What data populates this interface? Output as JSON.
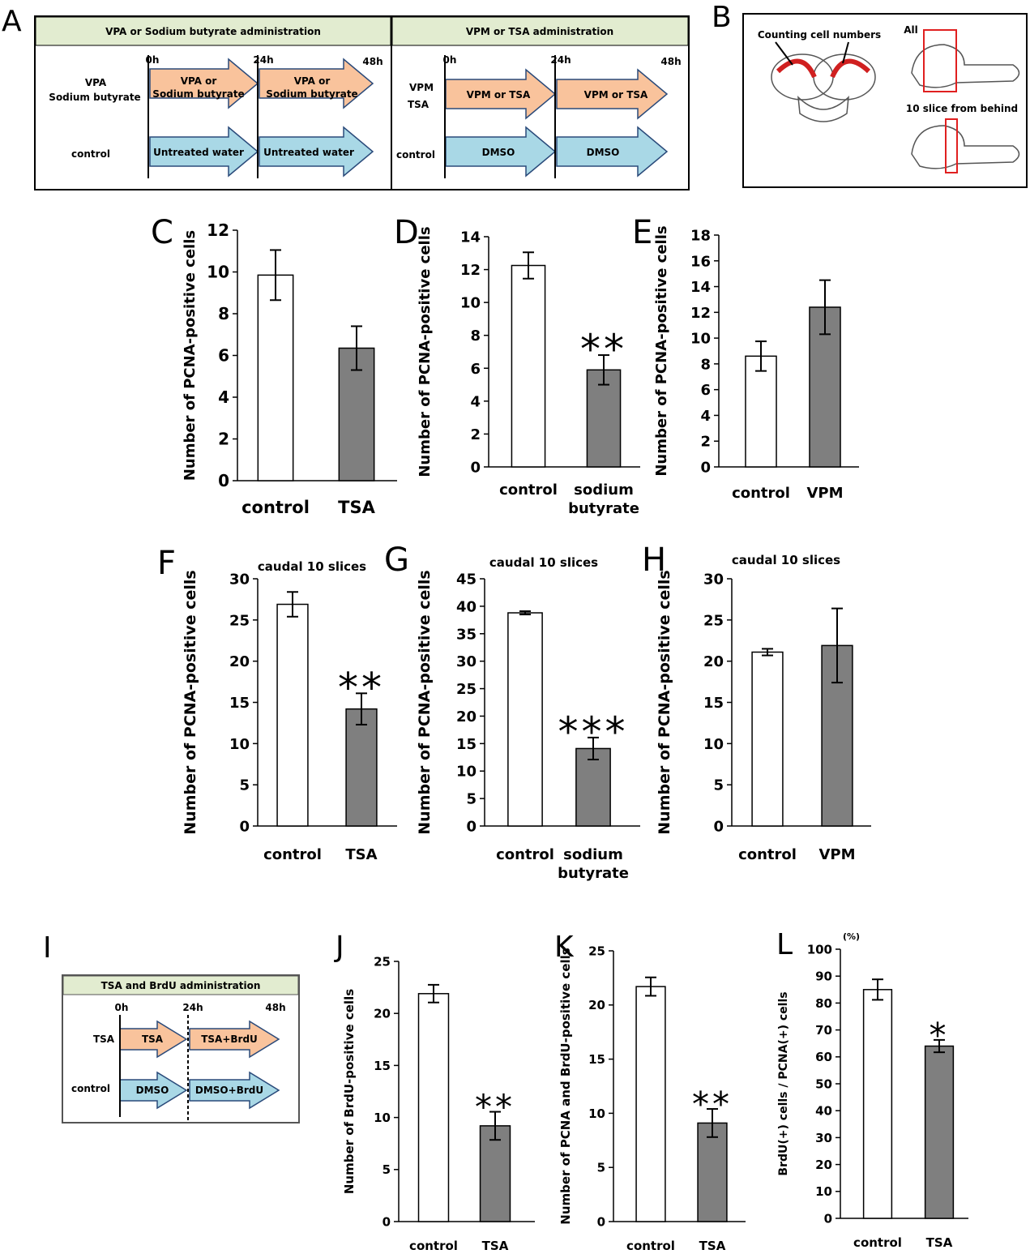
{
  "panel_a": {
    "letter": "A",
    "headers": [
      "VPA or Sodium butyrate administration",
      "VPM or TSA administration"
    ],
    "left_times": [
      "0h",
      "24h",
      "48h"
    ],
    "left_rows": [
      [
        "VPA",
        "Sodium butyrate"
      ],
      [
        "control"
      ]
    ],
    "left_arrows": [
      [
        "VPA or",
        "Sodium butyrate"
      ],
      [
        "VPA or",
        "Sodium butyrate"
      ],
      [
        "Untreated water"
      ],
      [
        "Untreated water"
      ]
    ],
    "right_times": [
      "0h",
      "24h",
      "48h"
    ],
    "right_rows": [
      [
        "VPM",
        "TSA"
      ],
      [
        "control"
      ]
    ],
    "right_arrows": [
      [
        "VPM or TSA"
      ],
      [
        "VPM or TSA"
      ],
      [
        "DMSO"
      ],
      [
        "DMSO"
      ]
    ]
  },
  "panel_b": {
    "letter": "B",
    "labels": [
      "Counting cell numbers",
      "All",
      "10 slice from behind"
    ]
  },
  "panel_i": {
    "letter": "I",
    "header": "TSA and BrdU administration",
    "times": [
      "0h",
      "24h",
      "48h"
    ],
    "rows": [
      "TSA",
      "control"
    ],
    "arrows": [
      "TSA",
      "TSA+BrdU",
      "DMSO",
      "DMSO+BrdU"
    ]
  },
  "chart_data": [
    {
      "type": "bar",
      "panel": "C",
      "ylabel": "Number of PCNA-positive cells",
      "categories": [
        "control",
        "TSA"
      ],
      "values": [
        9.85,
        6.35
      ],
      "errors": [
        1.2,
        1.05
      ],
      "colors": [
        "#ffffff",
        "#7f7f7f"
      ],
      "ylim": [
        0,
        12
      ],
      "yticks": [
        0,
        2,
        4,
        6,
        8,
        10,
        12
      ]
    },
    {
      "type": "bar",
      "panel": "D",
      "ylabel": "Number of PCNA-positive cells",
      "categories": [
        "control",
        "sodium butyrate"
      ],
      "values": [
        12.25,
        5.9
      ],
      "errors": [
        0.8,
        0.9
      ],
      "colors": [
        "#ffffff",
        "#7f7f7f"
      ],
      "ylim": [
        0,
        14
      ],
      "yticks": [
        0,
        2,
        4,
        6,
        8,
        10,
        12,
        14
      ],
      "annotation": "**"
    },
    {
      "type": "bar",
      "panel": "E",
      "ylabel": "Number of PCNA-positive cells",
      "categories": [
        "control",
        "VPM"
      ],
      "values": [
        8.6,
        12.4
      ],
      "errors": [
        1.15,
        2.1
      ],
      "colors": [
        "#ffffff",
        "#7f7f7f"
      ],
      "ylim": [
        0,
        18
      ],
      "yticks": [
        0,
        2,
        4,
        6,
        8,
        10,
        12,
        14,
        16,
        18
      ]
    },
    {
      "type": "bar",
      "panel": "F",
      "title": "caudal 10 slices",
      "ylabel": "Number of PCNA-positive cells",
      "categories": [
        "control",
        "TSA"
      ],
      "values": [
        26.9,
        14.2
      ],
      "errors": [
        1.5,
        1.9
      ],
      "colors": [
        "#ffffff",
        "#7f7f7f"
      ],
      "ylim": [
        0,
        30
      ],
      "yticks": [
        0,
        5,
        10,
        15,
        20,
        25,
        30
      ],
      "annotation": "**"
    },
    {
      "type": "bar",
      "panel": "G",
      "title": "caudal 10 slices",
      "ylabel": "Number of PCNA-positive cells",
      "categories": [
        "control",
        "sodium butyrate"
      ],
      "values": [
        38.8,
        14.1
      ],
      "errors": [
        0.3,
        2.0
      ],
      "colors": [
        "#ffffff",
        "#7f7f7f"
      ],
      "ylim": [
        0,
        45
      ],
      "yticks": [
        0,
        5,
        10,
        15,
        20,
        25,
        30,
        35,
        40,
        45
      ],
      "annotation": "***"
    },
    {
      "type": "bar",
      "panel": "H",
      "title": "caudal 10 slices",
      "ylabel": "Number of PCNA-positive cells",
      "categories": [
        "control",
        "VPM"
      ],
      "values": [
        21.1,
        21.9
      ],
      "errors": [
        0.4,
        4.5
      ],
      "colors": [
        "#ffffff",
        "#7f7f7f"
      ],
      "ylim": [
        0,
        30
      ],
      "yticks": [
        0,
        5,
        10,
        15,
        20,
        25,
        30
      ]
    },
    {
      "type": "bar",
      "panel": "J",
      "ylabel": "Number of BrdU-positive cells",
      "categories": [
        "control",
        "TSA"
      ],
      "values": [
        21.9,
        9.2
      ],
      "errors": [
        0.85,
        1.35
      ],
      "colors": [
        "#ffffff",
        "#7f7f7f"
      ],
      "ylim": [
        0,
        25
      ],
      "yticks": [
        0,
        5,
        10,
        15,
        20,
        25
      ],
      "annotation": "**"
    },
    {
      "type": "bar",
      "panel": "K",
      "ylabel": "Number of PCNA and BrdU-positive cells",
      "categories": [
        "control",
        "TSA"
      ],
      "values": [
        21.7,
        9.1
      ],
      "errors": [
        0.85,
        1.3
      ],
      "colors": [
        "#ffffff",
        "#7f7f7f"
      ],
      "ylim": [
        0,
        25
      ],
      "yticks": [
        0,
        5,
        10,
        15,
        20,
        25
      ],
      "annotation": "**"
    },
    {
      "type": "bar",
      "panel": "L",
      "ylabel": "BrdU(+) cells / PCNA(+) cells",
      "unit": "(%)",
      "categories": [
        "control",
        "TSA"
      ],
      "values": [
        85,
        64
      ],
      "errors": [
        3.8,
        2.3
      ],
      "colors": [
        "#ffffff",
        "#7f7f7f"
      ],
      "ylim": [
        0,
        100
      ],
      "yticks": [
        0,
        10,
        20,
        30,
        40,
        50,
        60,
        70,
        80,
        90,
        100
      ],
      "annotation": "*"
    }
  ]
}
